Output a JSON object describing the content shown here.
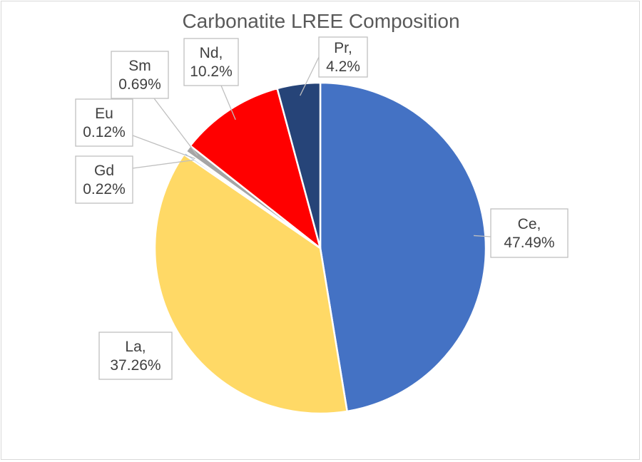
{
  "chart_data": {
    "type": "pie",
    "title": "Carbonatite LREE Composition",
    "categories": [
      "Ce",
      "La",
      "Gd",
      "Eu",
      "Sm",
      "Nd",
      "Pr"
    ],
    "values": [
      47.49,
      37.26,
      0.22,
      0.12,
      0.69,
      10.2,
      4.2
    ],
    "labels": [
      [
        "Ce,",
        "47.49%"
      ],
      [
        "La,",
        "37.26%"
      ],
      [
        "Gd",
        "0.22%"
      ],
      [
        "Eu",
        "0.12%"
      ],
      [
        "Sm",
        "0.69%"
      ],
      [
        "Nd,",
        "10.2%"
      ],
      [
        "Pr,",
        "4.2%"
      ]
    ],
    "colors": [
      "#4472c4",
      "#ffd966",
      "#5b9bd5",
      "#70ad47",
      "#a5a5a5",
      "#ff0000",
      "#264478"
    ],
    "start_angle_deg": 0,
    "direction": "clockwise",
    "legend": "none"
  }
}
